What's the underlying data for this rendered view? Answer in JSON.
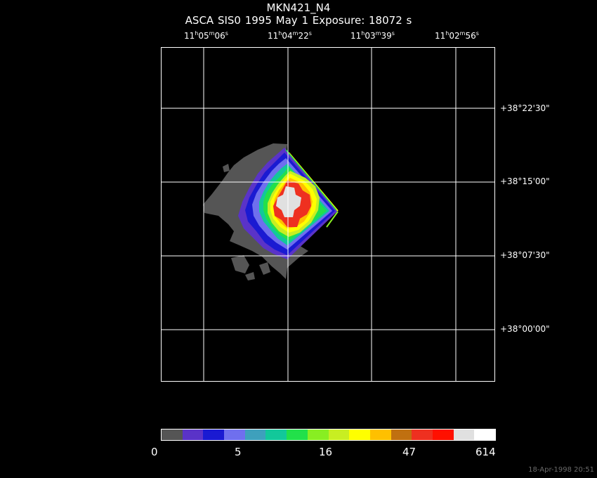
{
  "header": {
    "title": "MKN421_N4",
    "subtitle": "ASCA SIS0    1995 May  1    Exposure: 18072 s"
  },
  "ra_labels": [
    {
      "h": "11",
      "m": "05",
      "s": "06"
    },
    {
      "h": "11",
      "m": "04",
      "s": "22"
    },
    {
      "h": "11",
      "m": "03",
      "s": "39"
    },
    {
      "h": "11",
      "m": "02",
      "s": "56"
    }
  ],
  "dec_labels": [
    "+38°22'30\"",
    "+38°15'00\"",
    "+38°07'30\"",
    "+38°00'00\""
  ],
  "colorbar": {
    "colors": [
      "#555555",
      "#5a33c8",
      "#1a1ad2",
      "#6f6fee",
      "#3ea0bc",
      "#12c89a",
      "#22e04a",
      "#88ee22",
      "#c8ee22",
      "#ffff00",
      "#ffc000",
      "#c07010",
      "#ee3020",
      "#ff1000",
      "#e0e0e0",
      "#ffffff"
    ],
    "tick_labels": [
      "0",
      "5",
      "16",
      "47",
      "614"
    ]
  },
  "footer": {
    "timestamp": "18-Apr-1998 20:51"
  }
}
